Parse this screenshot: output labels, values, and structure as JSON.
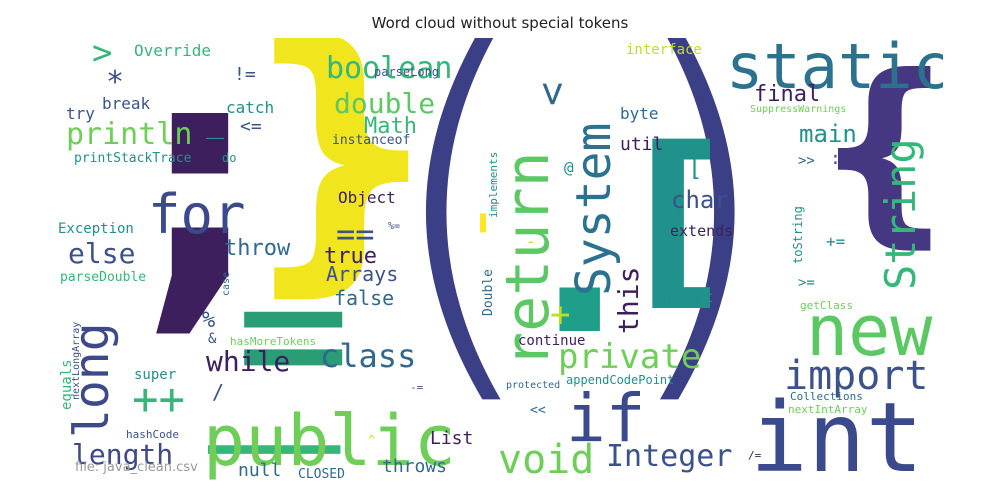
{
  "title": "Word cloud without special tokens",
  "footer": "file: java_clean.csv",
  "palette": {
    "dark_purple": "#3e1f5e",
    "indigo": "#3b4a8c",
    "blue": "#31688e",
    "teal": "#21918c",
    "green": "#35b779",
    "lime": "#6ece58",
    "yellow": "#fde725"
  },
  "words": {
    "open_paren": "(",
    "close_paren": ")",
    "semicolon": ";",
    "close_brace": "}",
    "open_brace": "{",
    "open_bracket": "[",
    "close_bracket": "[",
    "int": "int",
    "public": "public",
    "new": "new",
    "static": "static",
    "if": "if",
    "return": "return",
    "system": "System",
    "string": "String",
    "for": "for",
    "long": "long",
    "void": "void",
    "import": "import",
    "private": "private",
    "class": "class",
    "boolean": "boolean",
    "double": "double",
    "println": "println",
    "integer": "Integer",
    "length": "length",
    "else": "else",
    "while": "while",
    "math": "Math",
    "this": "this",
    "main": "main",
    "final": "final",
    "char": "char",
    "true": "true",
    "false": "false",
    "arrays": "Arrays",
    "throw": "throw",
    "object": "Object",
    "override": "Override",
    "break": "break",
    "catch": "catch",
    "try": "try",
    "print_stack_trace": "printStackTrace",
    "do": "do",
    "instanceof": "instanceof",
    "parse_long": "parseLong",
    "interface": "interface",
    "byte": "byte",
    "util": "util",
    "suppress_warnings": "SuppressWarnings",
    "exception": "Exception",
    "parse_double": "parseDouble",
    "next_long_array": "nextLongArray",
    "case": "case",
    "has_more_tokens": "hasMoreTokens",
    "super": "super",
    "equals": "equals",
    "hash_code": "hashCode",
    "null": "null",
    "closed": "CLOSED",
    "throws": "throws",
    "list": "List",
    "continue": "continue",
    "protected": "protected",
    "append_code_point": "appendCodePoint",
    "implements": "implements",
    "double_class": "Double",
    "extends": "extends",
    "print": "print",
    "to_string": "toString",
    "get_class": "getClass",
    "collections": "Collections",
    "next_int_array": "nextIntArray",
    "plus_plus": "++",
    "eq_eq": "==",
    "plus_eq": "+=",
    "minus_eq": "-=",
    "neq": "!=",
    "lte": "<=",
    "gte": ">=",
    "shift_left": "<<",
    "shift_right": ">>",
    "div_eq": "/=",
    "pct_eq": "%=",
    "gt": ">",
    "lt": "<",
    "star": "*",
    "underscore": "_",
    "plus": "+",
    "percent": "%",
    "ampersand": "&",
    "slash": "/",
    "at": "@",
    "colon": ":",
    "caret": "^",
    "apostrophe": "'",
    "minus": "-",
    "equals_sign": "=",
    "dot": "."
  }
}
